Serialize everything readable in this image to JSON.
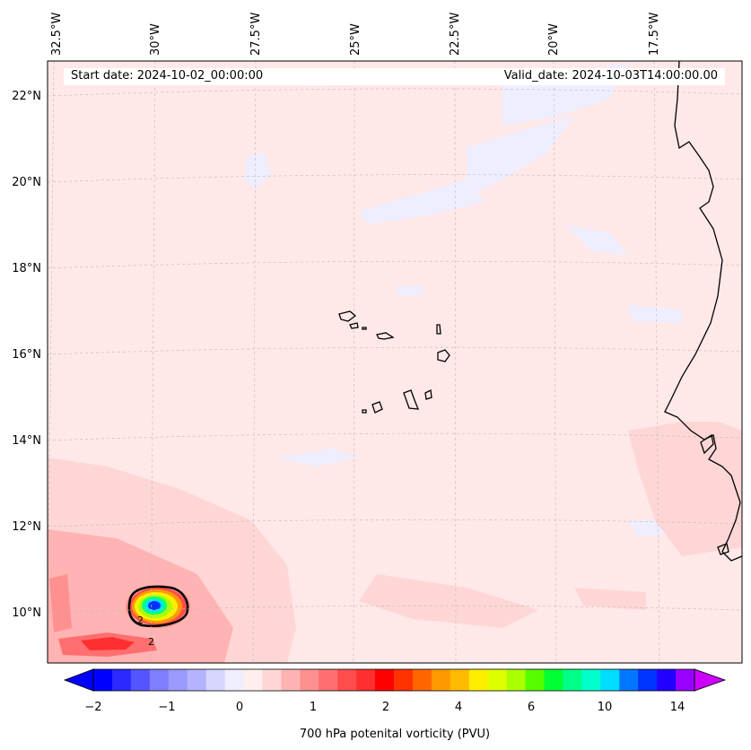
{
  "header": {
    "start_date": "Start date: 2024-10-02_00:00:00",
    "valid_date": "Valid_date: 2024-10-03T14:00:00.00"
  },
  "longitude_labels": [
    "32.5°W",
    "30°W",
    "27.5°W",
    "25°W",
    "22.5°W",
    "20°W",
    "17.5°W"
  ],
  "latitude_labels": [
    "22°N",
    "20°N",
    "18°N",
    "16°N",
    "14°N",
    "12°N",
    "10°N"
  ],
  "contour_labels": [
    "2",
    "2"
  ],
  "colorbar": {
    "title": "700 hPa potenital vorticity (PVU)",
    "tick_labels": [
      "−2",
      "−1",
      "0",
      "1",
      "2",
      "4",
      "6",
      "10",
      "14"
    ],
    "colors": [
      "#0000ff",
      "#2a2aff",
      "#5555ff",
      "#7f7fff",
      "#9a9aff",
      "#b3b3ff",
      "#d6d6ff",
      "#eeeeff",
      "#ffeeee",
      "#ffd6d6",
      "#ffb3b3",
      "#ff9090",
      "#ff6f6f",
      "#ff4d4d",
      "#ff2f2f",
      "#ff0000",
      "#ff3300",
      "#ff6600",
      "#ff9900",
      "#ffbb00",
      "#ffee00",
      "#ddff00",
      "#aaff00",
      "#55ff00",
      "#00ff33",
      "#00ff88",
      "#00ffcc",
      "#00ddff",
      "#0077ff",
      "#0033ff",
      "#2200ff",
      "#9900ff"
    ],
    "min_arrow_color": "#0000ff",
    "max_arrow_color": "#cc00ff"
  },
  "map_colors": {
    "background": "#ffe8e8",
    "coast": "#000000",
    "grid": "#bbbbbb"
  }
}
